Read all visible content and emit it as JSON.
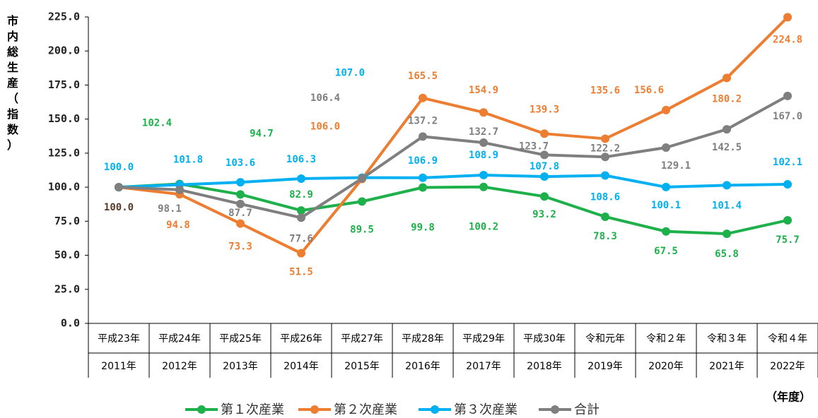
{
  "chart_data": {
    "type": "line",
    "y_axis_label": "市内総生産（指数）",
    "x_axis_label": "（年度）",
    "categories": [
      [
        "平成23年",
        "2011年"
      ],
      [
        "平成24年",
        "2012年"
      ],
      [
        "平成25年",
        "2013年"
      ],
      [
        "平成26年",
        "2014年"
      ],
      [
        "平成27年",
        "2015年"
      ],
      [
        "平成28年",
        "2016年"
      ],
      [
        "平成29年",
        "2017年"
      ],
      [
        "平成30年",
        "2018年"
      ],
      [
        "令和元年",
        "2019年"
      ],
      [
        "令和２年",
        "2020年"
      ],
      [
        "令和３年",
        "2021年"
      ],
      [
        "令和４年",
        "2022年"
      ]
    ],
    "ylim": [
      0,
      225
    ],
    "yticks": [
      {
        "value": 0,
        "label": "0.0"
      },
      {
        "value": 25,
        "label": "25.0"
      },
      {
        "value": 50,
        "label": "50.0"
      },
      {
        "value": 75,
        "label": "75.0"
      },
      {
        "value": 100,
        "label": "100.0"
      },
      {
        "value": 125,
        "label": "125.0"
      },
      {
        "value": 150,
        "label": "150.0"
      },
      {
        "value": 175,
        "label": "175.0"
      },
      {
        "value": 200,
        "label": "200.0"
      },
      {
        "value": 225,
        "label": "225.0"
      }
    ],
    "grid": false,
    "legend": "bottom",
    "series": [
      {
        "name": "第１次産業",
        "color": "#1eb04b",
        "values": [
          100,
          102.4,
          94.7,
          82.9,
          89.5,
          99.8,
          100.2,
          93.2,
          78.3,
          67.5,
          65.8,
          75.7
        ],
        "value_labels": [
          null,
          "102.4",
          "94.7",
          "82.9",
          "89.5",
          "99.8",
          "100.2",
          "93.2",
          "78.3",
          "67.5",
          "65.8",
          "75.7"
        ]
      },
      {
        "name": "第２次産業",
        "color": "#ed7d31",
        "values": [
          100,
          94.8,
          73.3,
          51.5,
          106,
          165.5,
          154.9,
          139.3,
          135.6,
          156.6,
          180.2,
          224.8
        ],
        "value_labels": [
          null,
          "94.8",
          "73.3",
          "51.5",
          "106.0",
          "165.5",
          "154.9",
          "139.3",
          "135.6",
          "156.6",
          "180.2",
          "224.8"
        ]
      },
      {
        "name": "第３次産業",
        "color": "#00b0f0",
        "values": [
          100,
          101.8,
          103.6,
          106.3,
          107,
          106.9,
          108.9,
          107.8,
          108.6,
          100.1,
          101.4,
          102.1
        ],
        "value_labels": [
          "100.0",
          "101.8",
          "103.6",
          "106.3",
          "107.0",
          "106.9",
          "108.9",
          "107.8",
          "108.6",
          "100.1",
          "101.4",
          "102.1"
        ]
      },
      {
        "name": "合計",
        "color": "#7f7f7f",
        "values": [
          100,
          98.1,
          87.7,
          77.6,
          106.4,
          137.2,
          132.7,
          123.7,
          122.2,
          129.1,
          142.5,
          167
        ],
        "value_labels": [
          "100.0",
          "98.1",
          "87.7",
          "77.6",
          "106.4",
          "137.2",
          "132.7",
          "123.7",
          "122.2",
          "129.1",
          "142.5",
          "167.0"
        ]
      }
    ]
  }
}
